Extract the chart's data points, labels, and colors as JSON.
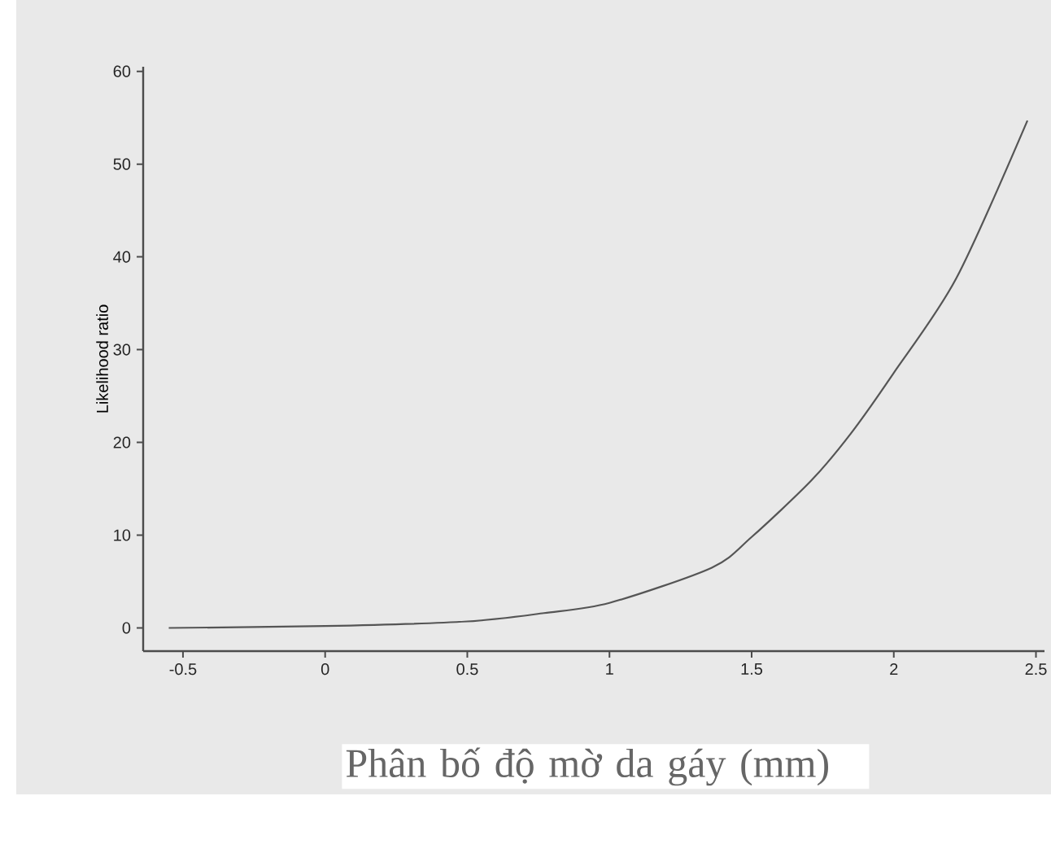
{
  "chart_data": {
    "type": "line",
    "xlabel": "Phân bố độ mờ da gáy (mm)",
    "ylabel": "Likelihood ratio",
    "x": [
      -0.55,
      0,
      0.5,
      0.77,
      1,
      1.36,
      1.5,
      1.71,
      1.85,
      2.0,
      2.22,
      2.47
    ],
    "series": [
      {
        "color": "#555555",
        "values": [
          0,
          0.2,
          0.7,
          1.6,
          2.7,
          6.5,
          9.8,
          15.9,
          21,
          27.5,
          37.7,
          54.7
        ]
      }
    ],
    "xlim": [
      -0.64,
      2.53
    ],
    "ylim": [
      -2.5,
      60.5
    ],
    "xticks": [
      -0.5,
      0,
      0.5,
      1,
      1.5,
      2,
      2.5
    ],
    "yticks": [
      0,
      10,
      20,
      30,
      40,
      50,
      60
    ],
    "grid": false,
    "marker": "none",
    "line_style": "solid"
  }
}
